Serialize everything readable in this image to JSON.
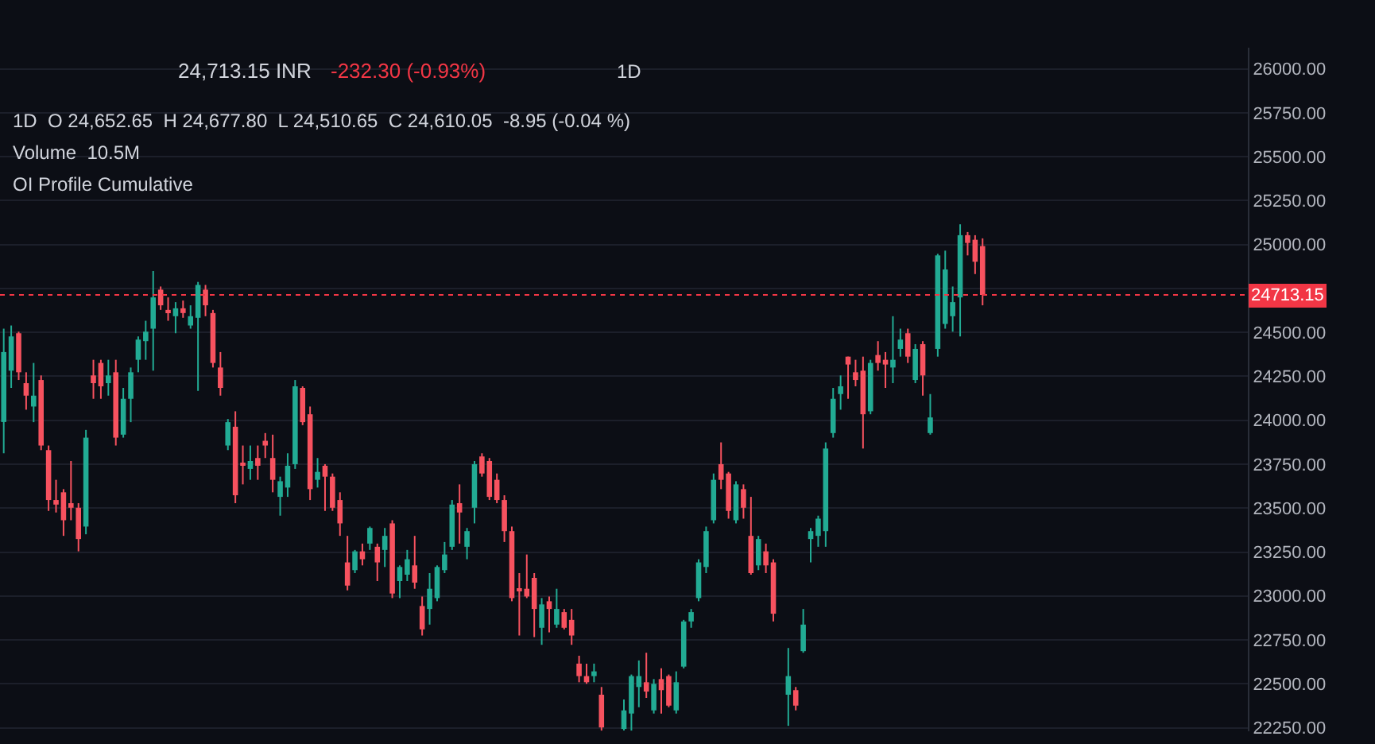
{
  "chart_data": {
    "type": "candlestick",
    "categories": [
      null,
      null,
      null,
      null,
      null,
      null,
      null,
      null,
      null,
      null,
      null,
      null,
      null,
      null,
      null,
      null,
      null,
      null,
      null,
      null,
      null,
      null,
      null,
      null,
      null,
      null,
      null,
      null,
      null,
      null,
      null,
      null,
      null,
      null,
      null,
      null,
      null,
      null,
      null,
      null,
      null,
      null,
      null,
      null,
      null,
      null,
      null,
      null,
      null,
      null,
      null,
      null,
      null,
      null,
      null,
      null,
      null,
      null,
      null,
      null,
      null,
      null,
      null,
      null,
      null,
      null,
      null,
      null,
      null,
      null,
      null,
      null,
      null,
      null,
      null,
      null,
      null,
      null,
      null,
      null,
      null,
      null,
      null,
      null,
      null,
      null,
      null,
      null,
      null,
      null,
      null,
      null,
      null,
      null,
      null,
      null,
      null,
      null,
      null,
      null,
      null,
      null,
      null,
      null,
      null,
      null,
      null,
      null,
      null,
      null,
      null,
      null,
      null,
      null,
      null,
      null,
      null,
      null,
      null,
      null,
      null,
      null,
      null,
      null,
      null,
      null,
      null,
      null,
      null,
      null,
      null,
      null,
      null,
      null,
      null,
      null,
      null,
      null,
      null,
      null,
      null,
      null,
      null,
      null,
      null,
      null,
      null,
      null,
      null,
      null,
      null,
      null,
      null,
      null,
      null,
      null,
      null,
      null,
      null,
      null,
      null,
      null,
      null,
      null,
      null,
      null,
      null
    ],
    "ohlc": [
      [
        23990,
        24521,
        23812,
        24388
      ],
      [
        24282,
        24539,
        24184,
        24477
      ],
      [
        24495,
        24504,
        24229,
        24273
      ],
      [
        24211,
        24273,
        24060,
        24140
      ],
      [
        24078,
        24326,
        23989,
        24140
      ],
      [
        24229,
        24255,
        23830,
        23856
      ],
      [
        23830,
        23856,
        23484,
        23546
      ],
      [
        23546,
        23661,
        23475,
        23520
      ],
      [
        23590,
        23608,
        23342,
        23431
      ],
      [
        23528,
        23768,
        23431,
        23502
      ],
      [
        23502,
        23528,
        23254,
        23324
      ],
      [
        23395,
        23945,
        23351,
        23901
      ],
      [
        24255,
        24344,
        24122,
        24211
      ],
      [
        24326,
        24344,
        24122,
        24193
      ],
      [
        24211,
        24344,
        24140,
        24255
      ],
      [
        24273,
        24344,
        23856,
        23901
      ],
      [
        23918,
        24184,
        23901,
        24122
      ],
      [
        24122,
        24300,
        23989,
        24273
      ],
      [
        24344,
        24477,
        24273,
        24459
      ],
      [
        24450,
        24566,
        24344,
        24504
      ],
      [
        24521,
        24849,
        24282,
        24699
      ],
      [
        24743,
        24761,
        24628,
        24654
      ],
      [
        24628,
        24699,
        24566,
        24610
      ],
      [
        24592,
        24672,
        24495,
        24637
      ],
      [
        24637,
        24681,
        24583,
        24610
      ],
      [
        24539,
        24654,
        24521,
        24592
      ],
      [
        24583,
        24787,
        24167,
        24770
      ],
      [
        24743,
        24770,
        24592,
        24654
      ],
      [
        24610,
        24628,
        24300,
        24326
      ],
      [
        24300,
        24388,
        24140,
        24184
      ],
      [
        23856,
        24007,
        23830,
        23989
      ],
      [
        23963,
        24051,
        23528,
        23573
      ],
      [
        23750,
        23856,
        23635,
        23741
      ],
      [
        23723,
        23856,
        23661,
        23768
      ],
      [
        23785,
        23856,
        23661,
        23741
      ],
      [
        23883,
        23927,
        23785,
        23856
      ],
      [
        23785,
        23918,
        23590,
        23661
      ],
      [
        23564,
        23679,
        23457,
        23653
      ],
      [
        23617,
        23812,
        23564,
        23741
      ],
      [
        23750,
        24229,
        23723,
        24193
      ],
      [
        24184,
        24193,
        23972,
        23989
      ],
      [
        24034,
        24078,
        23546,
        23608
      ],
      [
        23661,
        23785,
        23617,
        23706
      ],
      [
        23741,
        23750,
        23484,
        23679
      ],
      [
        23679,
        23697,
        23484,
        23502
      ],
      [
        23546,
        23590,
        23342,
        23413
      ],
      [
        23191,
        23342,
        23032,
        23059
      ],
      [
        23147,
        23262,
        23130,
        23254
      ],
      [
        23254,
        23298,
        23174,
        23209
      ],
      [
        23298,
        23395,
        23262,
        23387
      ],
      [
        23280,
        23298,
        23085,
        23191
      ],
      [
        23262,
        23387,
        23165,
        23342
      ],
      [
        23413,
        23431,
        22988,
        23014
      ],
      [
        23085,
        23174,
        22988,
        23165
      ],
      [
        23121,
        23262,
        23085,
        23209
      ],
      [
        23174,
        23342,
        23041,
        23076
      ],
      [
        22943,
        22997,
        22775,
        22810
      ],
      [
        22926,
        23130,
        22837,
        23041
      ],
      [
        22988,
        23174,
        22970,
        23165
      ],
      [
        23147,
        23307,
        23130,
        23236
      ],
      [
        23280,
        23546,
        23262,
        23520
      ],
      [
        23528,
        23635,
        23298,
        23475
      ],
      [
        23280,
        23387,
        23209,
        23369
      ],
      [
        23502,
        23768,
        23413,
        23750
      ],
      [
        23794,
        23812,
        23679,
        23697
      ],
      [
        23768,
        23785,
        23546,
        23564
      ],
      [
        23661,
        23697,
        23528,
        23546
      ],
      [
        23546,
        23573,
        23307,
        23369
      ],
      [
        23369,
        23395,
        22970,
        22988
      ],
      [
        23041,
        23130,
        22775,
        23032
      ],
      [
        23041,
        23236,
        22988,
        22997
      ],
      [
        23103,
        23130,
        22766,
        22926
      ],
      [
        22819,
        22988,
        22722,
        22952
      ],
      [
        22970,
        22997,
        22793,
        22926
      ],
      [
        22837,
        23041,
        22819,
        22926
      ],
      [
        22908,
        22926,
        22810,
        22819
      ],
      [
        22864,
        22926,
        22722,
        22775
      ],
      [
        22615,
        22660,
        22509,
        22544
      ],
      [
        22544,
        22615,
        22500,
        22509
      ],
      [
        22544,
        22615,
        22509,
        22571
      ],
      [
        22438,
        22482,
        22234,
        22252
      ],
      null,
      null,
      [
        22243,
        22411,
        22234,
        22349
      ],
      [
        22331,
        22553,
        22234,
        22544
      ],
      [
        22482,
        22633,
        22367,
        22544
      ],
      [
        22509,
        22677,
        22420,
        22456
      ],
      [
        22349,
        22527,
        22331,
        22500
      ],
      [
        22527,
        22588,
        22331,
        22464
      ],
      [
        22544,
        22553,
        22367,
        22376
      ],
      [
        22349,
        22571,
        22331,
        22509
      ],
      [
        22598,
        22864,
        22588,
        22855
      ],
      [
        22855,
        22926,
        22819,
        22908
      ],
      [
        22988,
        23209,
        22970,
        23191
      ],
      [
        23165,
        23395,
        23130,
        23369
      ],
      [
        23431,
        23697,
        23413,
        23661
      ],
      [
        23750,
        23874,
        23608,
        23661
      ],
      [
        23697,
        23706,
        23440,
        23484
      ],
      [
        23431,
        23653,
        23413,
        23635
      ],
      [
        23608,
        23635,
        23440,
        23502
      ],
      [
        23342,
        23564,
        23121,
        23130
      ],
      [
        23174,
        23342,
        23147,
        23324
      ],
      [
        23254,
        23298,
        23130,
        23174
      ],
      [
        23191,
        23209,
        22855,
        22899
      ],
      null,
      [
        22438,
        22704,
        22261,
        22544
      ],
      [
        22464,
        22482,
        22349,
        22376
      ],
      [
        22686,
        22926,
        22677,
        22837
      ],
      [
        23324,
        23387,
        23191,
        23369
      ],
      [
        23342,
        23457,
        23280,
        23440
      ],
      [
        23369,
        23874,
        23280,
        23839
      ],
      [
        23927,
        24184,
        23901,
        24122
      ],
      [
        24149,
        24255,
        24060,
        24193
      ],
      [
        24362,
        24362,
        24122,
        24317
      ],
      [
        24273,
        24344,
        24193,
        24229
      ],
      [
        24282,
        24362,
        23839,
        24034
      ],
      [
        24051,
        24344,
        24034,
        24326
      ],
      [
        24371,
        24450,
        24282,
        24326
      ],
      [
        24344,
        24388,
        24184,
        24317
      ],
      [
        24300,
        24592,
        24211,
        24344
      ],
      [
        24406,
        24521,
        24362,
        24459
      ],
      [
        24495,
        24521,
        24326,
        24362
      ],
      [
        24229,
        24433,
        24211,
        24406
      ],
      [
        24433,
        24450,
        24140,
        24255
      ],
      [
        23927,
        24149,
        23918,
        24016
      ],
      [
        24406,
        24947,
        24362,
        24938
      ],
      [
        24548,
        24965,
        24521,
        24858
      ],
      [
        24592,
        24761,
        24504,
        24672
      ],
      [
        24699,
        25115,
        24477,
        25053
      ],
      [
        25053,
        25071,
        24938,
        25009
      ],
      [
        25027,
        25053,
        24832,
        24902
      ],
      [
        24991,
        25035,
        24654,
        24713.15
      ],
      null,
      null,
      null,
      null,
      null,
      null,
      null,
      null,
      null,
      null,
      null,
      null,
      null,
      null,
      null,
      null,
      null,
      null,
      null,
      null,
      null,
      null,
      null,
      null,
      null,
      null,
      null,
      null,
      null,
      null,
      null,
      null,
      null,
      null,
      null
    ],
    "ylim": [
      22230,
      26120
    ],
    "yticks": [
      {
        "value": 22250,
        "label": "22250.00"
      },
      {
        "value": 22500,
        "label": "22500.00"
      },
      {
        "value": 22750,
        "label": "22750.00"
      },
      {
        "value": 23000,
        "label": "23000.00"
      },
      {
        "value": 23250,
        "label": "23250.00"
      },
      {
        "value": 23500,
        "label": "23500.00"
      },
      {
        "value": 23750,
        "label": "23750.00"
      },
      {
        "value": 24000,
        "label": "24000.00"
      },
      {
        "value": 24250,
        "label": "24250.00"
      },
      {
        "value": 24500,
        "label": "24500.00"
      },
      {
        "value": 24750,
        "label": null
      },
      {
        "value": 25000,
        "label": "25000.00"
      },
      {
        "value": 25250,
        "label": "25250.00"
      },
      {
        "value": 25500,
        "label": "25500.00"
      },
      {
        "value": 25750,
        "label": "25750.00"
      },
      {
        "value": 26000,
        "label": "26000.00"
      }
    ],
    "ref_lines": [
      {
        "axis": "y",
        "value": 24713.15,
        "label": "24713.15",
        "color": "#f23645",
        "line_style": "dotted"
      }
    ],
    "annotations": [
      "24,713.15 INR",
      "-232.30 (-0.93%)",
      "1D",
      "1D  O 24,652.65  H 24,677.80  L 24,510.65  C 24,610.05  -8.95 (-0.04 %)",
      "Volume  10.5M",
      "OI Profile Cumulative"
    ],
    "grid": "y"
  }
}
